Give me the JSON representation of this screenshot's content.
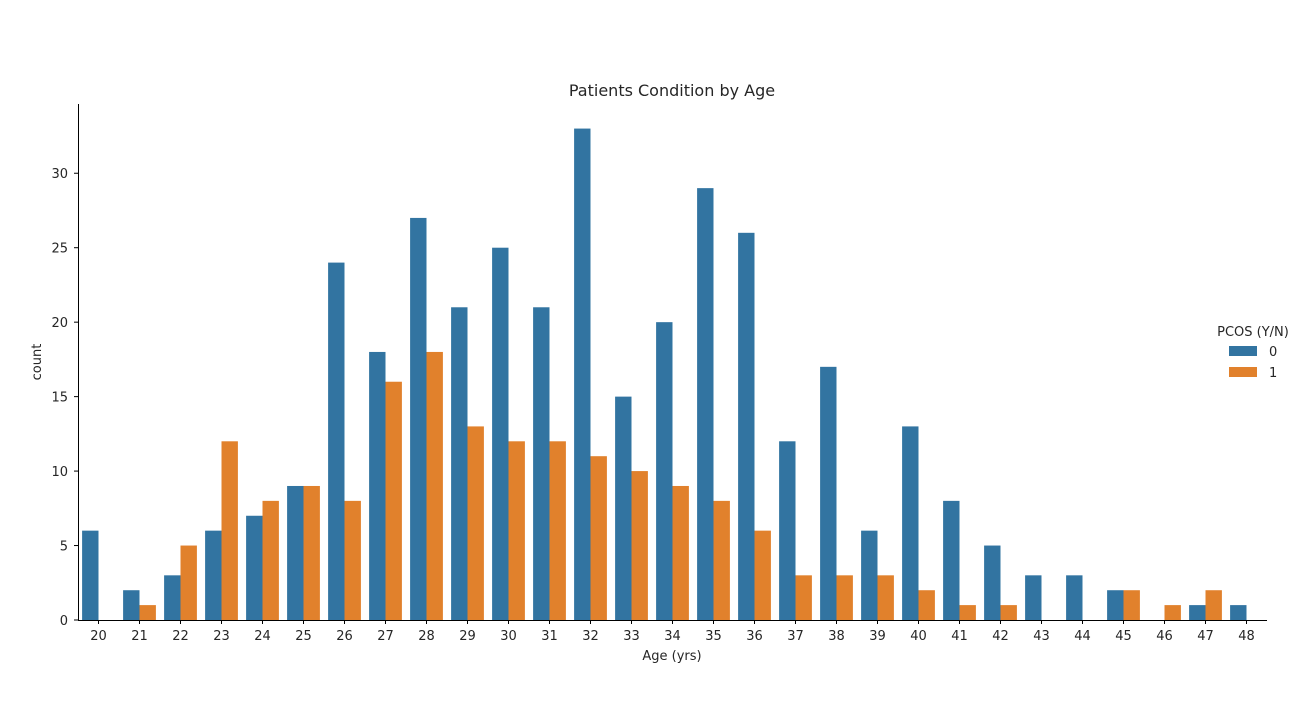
{
  "chart_data": {
    "type": "bar",
    "title": "Patients Condition by Age",
    "xlabel": "Age (yrs)",
    "ylabel": "count",
    "categories": [
      "20",
      "21",
      "22",
      "23",
      "24",
      "25",
      "26",
      "27",
      "28",
      "29",
      "30",
      "31",
      "32",
      "33",
      "34",
      "35",
      "36",
      "37",
      "38",
      "39",
      "40",
      "41",
      "42",
      "43",
      "44",
      "45",
      "46",
      "47",
      "48"
    ],
    "series": [
      {
        "name": "0",
        "color": "#3274a1",
        "values": [
          6,
          2,
          3,
          6,
          7,
          9,
          24,
          18,
          27,
          21,
          25,
          21,
          33,
          15,
          20,
          29,
          26,
          12,
          17,
          6,
          13,
          8,
          5,
          3,
          3,
          2,
          0,
          1,
          1
        ]
      },
      {
        "name": "1",
        "color": "#e1812c",
        "values": [
          0,
          1,
          5,
          12,
          8,
          9,
          8,
          16,
          18,
          13,
          12,
          12,
          11,
          10,
          9,
          8,
          6,
          3,
          3,
          3,
          2,
          1,
          1,
          0,
          0,
          2,
          1,
          2,
          0
        ]
      }
    ],
    "ylim": [
      0,
      34.65
    ],
    "yticks": [
      0,
      5,
      10,
      15,
      20,
      25,
      30
    ],
    "legend": {
      "title": "PCOS (Y/N)",
      "placement": "right"
    },
    "grid": false
  }
}
